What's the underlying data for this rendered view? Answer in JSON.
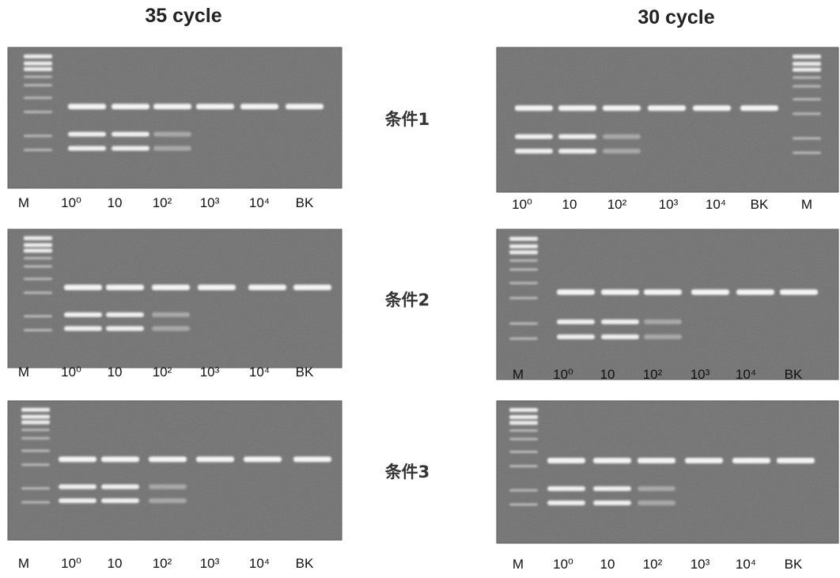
{
  "panels": [
    {
      "title": "35 cycle",
      "gels": [
        {
          "condition": "条件1",
          "lanes": [
            "M",
            "10⁰",
            "10",
            "10²",
            "10³",
            "10⁴",
            "BK"
          ]
        },
        {
          "condition": "条件2",
          "lanes": [
            "M",
            "10⁰",
            "10",
            "10²",
            "10³",
            "10⁴",
            "BK"
          ]
        },
        {
          "condition": "条件3",
          "lanes": [
            "M",
            "10⁰",
            "10",
            "10²",
            "10³",
            "10⁴",
            "BK"
          ]
        }
      ]
    },
    {
      "title": "30 cycle",
      "gels": [
        {
          "lanes": [
            "10⁰",
            "10",
            "10²",
            "10³",
            "10⁴",
            "BK",
            "M"
          ]
        },
        {
          "lanes": [
            "M",
            "10⁰",
            "10",
            "10²",
            "10³",
            "10⁴",
            "BK"
          ]
        },
        {
          "lanes": [
            "M",
            "10⁰",
            "10",
            "10²",
            "10³",
            "10⁴",
            "BK"
          ]
        }
      ]
    }
  ]
}
